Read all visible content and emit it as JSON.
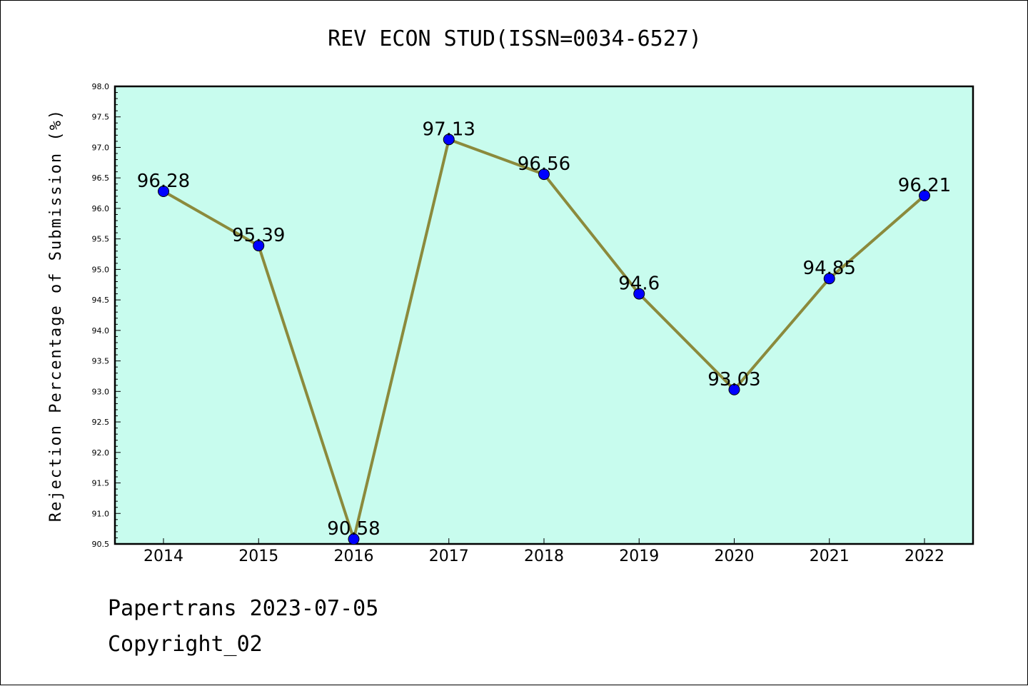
{
  "chart_data": {
    "type": "line",
    "title": "REV ECON STUD(ISSN=0034-6527)",
    "xlabel": "",
    "ylabel": "Rejection Percentage of Submission (%)",
    "categories": [
      "2014",
      "2015",
      "2016",
      "2017",
      "2018",
      "2019",
      "2020",
      "2021",
      "2022"
    ],
    "series": [
      {
        "values": [
          96.28,
          95.39,
          90.58,
          97.13,
          96.56,
          94.6,
          93.03,
          94.85,
          96.21
        ]
      }
    ],
    "data_labels": [
      "96.28",
      "95.39",
      "90.58",
      "97.13",
      "96.56",
      "94.6",
      "93.03",
      "94.85",
      "96.21"
    ],
    "ylim": [
      90.5,
      98.0
    ],
    "yticks": [
      "90.5",
      "91.0",
      "91.5",
      "92.0",
      "92.5",
      "93.0",
      "93.5",
      "94.0",
      "94.5",
      "95.0",
      "95.5",
      "96.0",
      "96.5",
      "97.0",
      "97.5",
      "98.0"
    ],
    "grid": false,
    "colors": {
      "plot_background": "#c8fcee",
      "line": "#8b8a3c",
      "marker": "#0000ff"
    }
  },
  "footer": {
    "line1": "Papertrans 2023-07-05",
    "line2": "Copyright_02"
  }
}
